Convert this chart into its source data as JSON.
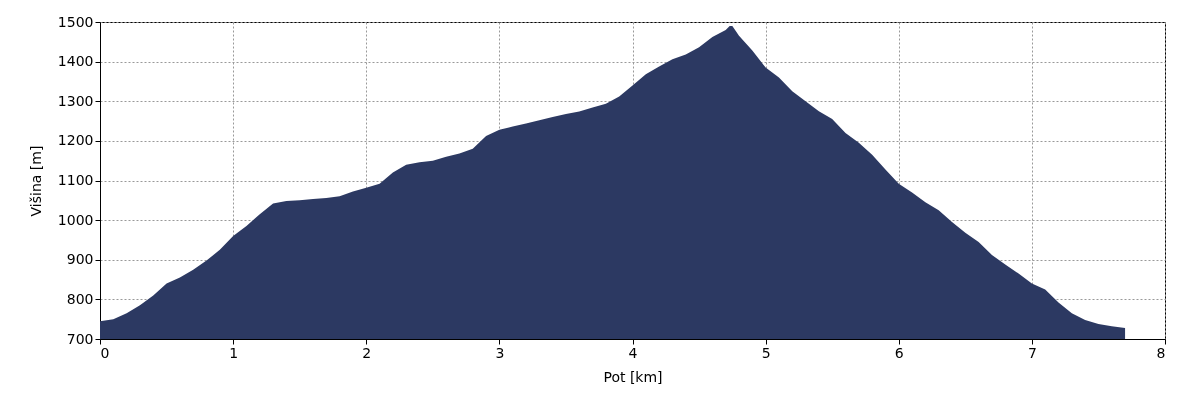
{
  "chart_data": {
    "type": "area",
    "xlabel": "Pot [km]",
    "ylabel": "Višina [m]",
    "x": [
      0,
      0.1,
      0.2,
      0.3,
      0.4,
      0.5,
      0.6,
      0.7,
      0.8,
      0.9,
      1.0,
      1.1,
      1.2,
      1.3,
      1.4,
      1.5,
      1.6,
      1.7,
      1.8,
      1.9,
      2.0,
      2.1,
      2.2,
      2.3,
      2.4,
      2.5,
      2.6,
      2.7,
      2.8,
      2.9,
      3.0,
      3.1,
      3.2,
      3.3,
      3.4,
      3.5,
      3.6,
      3.7,
      3.8,
      3.9,
      4.0,
      4.1,
      4.2,
      4.3,
      4.4,
      4.5,
      4.6,
      4.7,
      4.73,
      4.75,
      4.8,
      4.9,
      5.0,
      5.1,
      5.2,
      5.3,
      5.4,
      5.5,
      5.6,
      5.7,
      5.8,
      5.9,
      6.0,
      6.1,
      6.2,
      6.3,
      6.4,
      6.5,
      6.6,
      6.7,
      6.8,
      6.9,
      7.0,
      7.1,
      7.2,
      7.3,
      7.4,
      7.5,
      7.6,
      7.7
    ],
    "series": [
      {
        "color": "#2c3962",
        "values": [
          745,
          750,
          765,
          785,
          810,
          840,
          855,
          875,
          898,
          925,
          960,
          985,
          1015,
          1042,
          1048,
          1050,
          1053,
          1056,
          1060,
          1072,
          1082,
          1092,
          1120,
          1140,
          1146,
          1150,
          1160,
          1168,
          1180,
          1212,
          1228,
          1236,
          1244,
          1252,
          1260,
          1268,
          1274,
          1284,
          1294,
          1312,
          1340,
          1368,
          1388,
          1406,
          1418,
          1436,
          1462,
          1480,
          1490,
          1490,
          1465,
          1428,
          1385,
          1360,
          1325,
          1300,
          1275,
          1255,
          1220,
          1195,
          1165,
          1128,
          1092,
          1070,
          1045,
          1025,
          995,
          968,
          945,
          912,
          888,
          865,
          840,
          825,
          792,
          765,
          748,
          738,
          732,
          728
        ]
      }
    ],
    "xlim": [
      0,
      8
    ],
    "xticks": [
      0,
      1,
      2,
      3,
      4,
      5,
      6,
      7,
      8
    ],
    "ylim": [
      700,
      1500
    ],
    "yticks": [
      700,
      800,
      900,
      1000,
      1100,
      1200,
      1300,
      1400,
      1500
    ],
    "grid": true
  }
}
